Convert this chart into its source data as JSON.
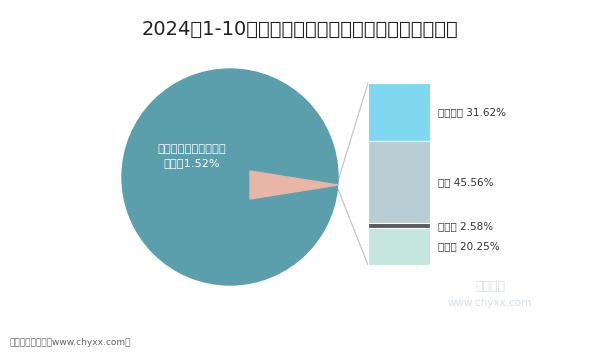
{
  "title": "2024年1-10月云南省原保险保费收入类别对比统计图",
  "title_fontsize": 14,
  "pie_label_line1": "云南省保险保费占全国",
  "pie_label_line2": "比重为1.52%",
  "pie_color": "#5b9fad",
  "pie_text_color": "#ffffff",
  "values": [
    31.62,
    45.56,
    2.58,
    20.25
  ],
  "bar_colors": [
    "#7fd7f0",
    "#b8cdd4",
    "#5a5a5a",
    "#c5e6de"
  ],
  "labels": [
    "财产保险 31.62%",
    "寿险 45.56%",
    "意外险 2.58%",
    "健康险 20.25%"
  ],
  "footer_text": "制图：智研咨询（www.chyxx.com）",
  "watermark_line1": "智研咨询",
  "watermark_line2": "www.chyxx.com",
  "bg_color": "#ffffff",
  "wedge_color": "#e8b5a8",
  "line_color": "#c0c0c0"
}
